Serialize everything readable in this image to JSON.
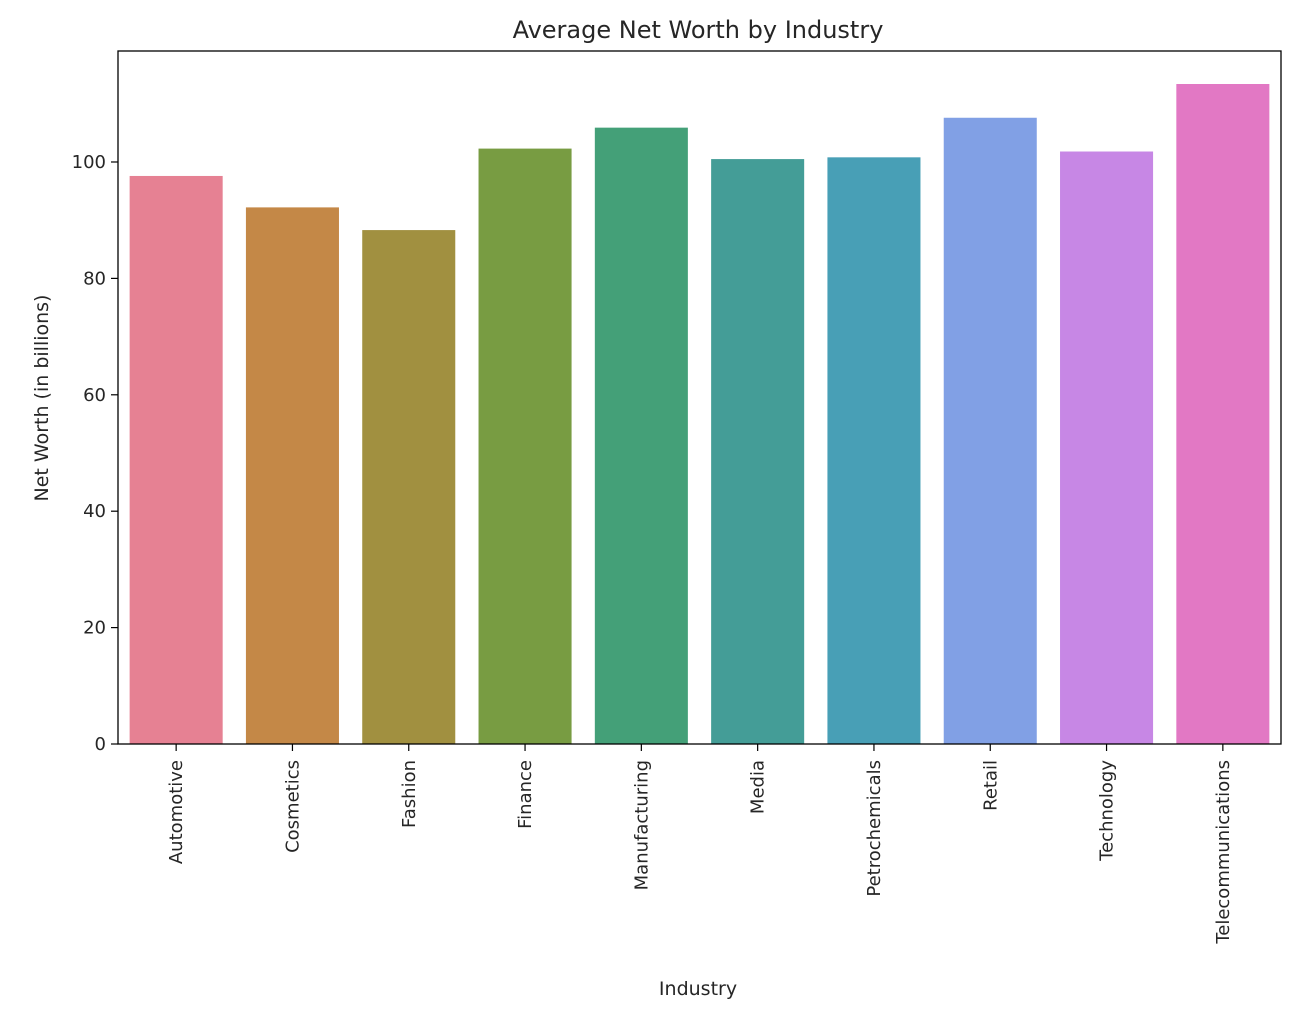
{
  "chart_data": {
    "type": "bar",
    "title": "Average Net Worth by Industry",
    "xlabel": "Industry",
    "ylabel": "Net Worth (in billions)",
    "categories": [
      "Automotive",
      "Cosmetics",
      "Fashion",
      "Finance",
      "Manufacturing",
      "Media",
      "Petrochemicals",
      "Retail",
      "Technology",
      "Telecommunications"
    ],
    "values": [
      97.6,
      92.2,
      88.3,
      102.3,
      105.9,
      100.5,
      100.8,
      107.6,
      101.8,
      113.4
    ],
    "colors": [
      "#e68193",
      "#c48847",
      "#a19040",
      "#789c42",
      "#44a078",
      "#449d97",
      "#489fb6",
      "#81a0e5",
      "#c787e5",
      "#e278c4"
    ],
    "ylim": [
      0,
      119.07
    ],
    "yticks": [
      0,
      20,
      40,
      60,
      80,
      100
    ],
    "grid": false,
    "legend": "none"
  }
}
